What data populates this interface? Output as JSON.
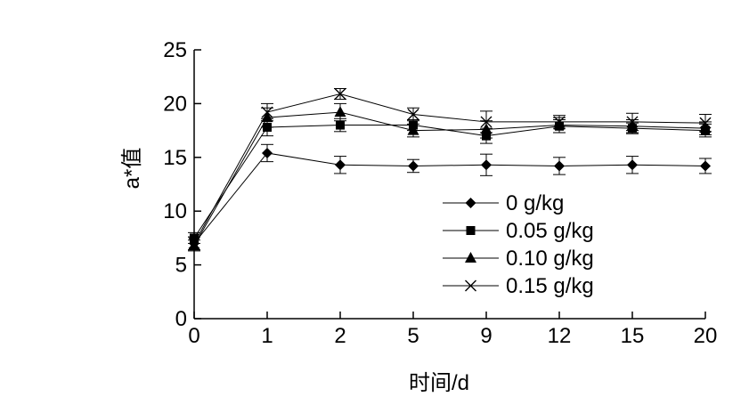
{
  "chart_data": {
    "type": "line",
    "title": "",
    "xlabel": "时间/d",
    "ylabel": "a*值",
    "ylim": [
      0,
      25
    ],
    "yticks": [
      0,
      5,
      10,
      15,
      20,
      25
    ],
    "categories": [
      "0",
      "1",
      "2",
      "5",
      "9",
      "12",
      "15",
      "20"
    ],
    "legend_position": "center-right",
    "grid": false,
    "series": [
      {
        "name": "0 g/kg",
        "marker": "diamond",
        "values": [
          7.0,
          15.4,
          14.3,
          14.2,
          14.3,
          14.2,
          14.3,
          14.2
        ],
        "errors": [
          0.6,
          0.8,
          0.8,
          0.6,
          1.0,
          0.8,
          0.8,
          0.7
        ]
      },
      {
        "name": "0.05 g/kg",
        "marker": "square",
        "values": [
          7.5,
          17.8,
          18.0,
          18.0,
          17.0,
          17.9,
          17.7,
          17.5
        ],
        "errors": [
          0.5,
          0.8,
          0.6,
          0.5,
          0.7,
          0.6,
          0.5,
          0.6
        ]
      },
      {
        "name": "0.10 g/kg",
        "marker": "triangle",
        "values": [
          6.8,
          18.7,
          19.2,
          17.5,
          17.6,
          18.0,
          17.9,
          17.7
        ],
        "errors": [
          0.5,
          0.9,
          0.8,
          0.6,
          0.8,
          0.7,
          0.6,
          0.6
        ]
      },
      {
        "name": "0.15 g/kg",
        "marker": "cross",
        "values": [
          7.0,
          19.2,
          20.9,
          19.0,
          18.3,
          18.3,
          18.3,
          18.2
        ],
        "errors": [
          0.6,
          0.8,
          0.5,
          0.6,
          1.0,
          0.6,
          0.8,
          0.8
        ]
      }
    ]
  }
}
